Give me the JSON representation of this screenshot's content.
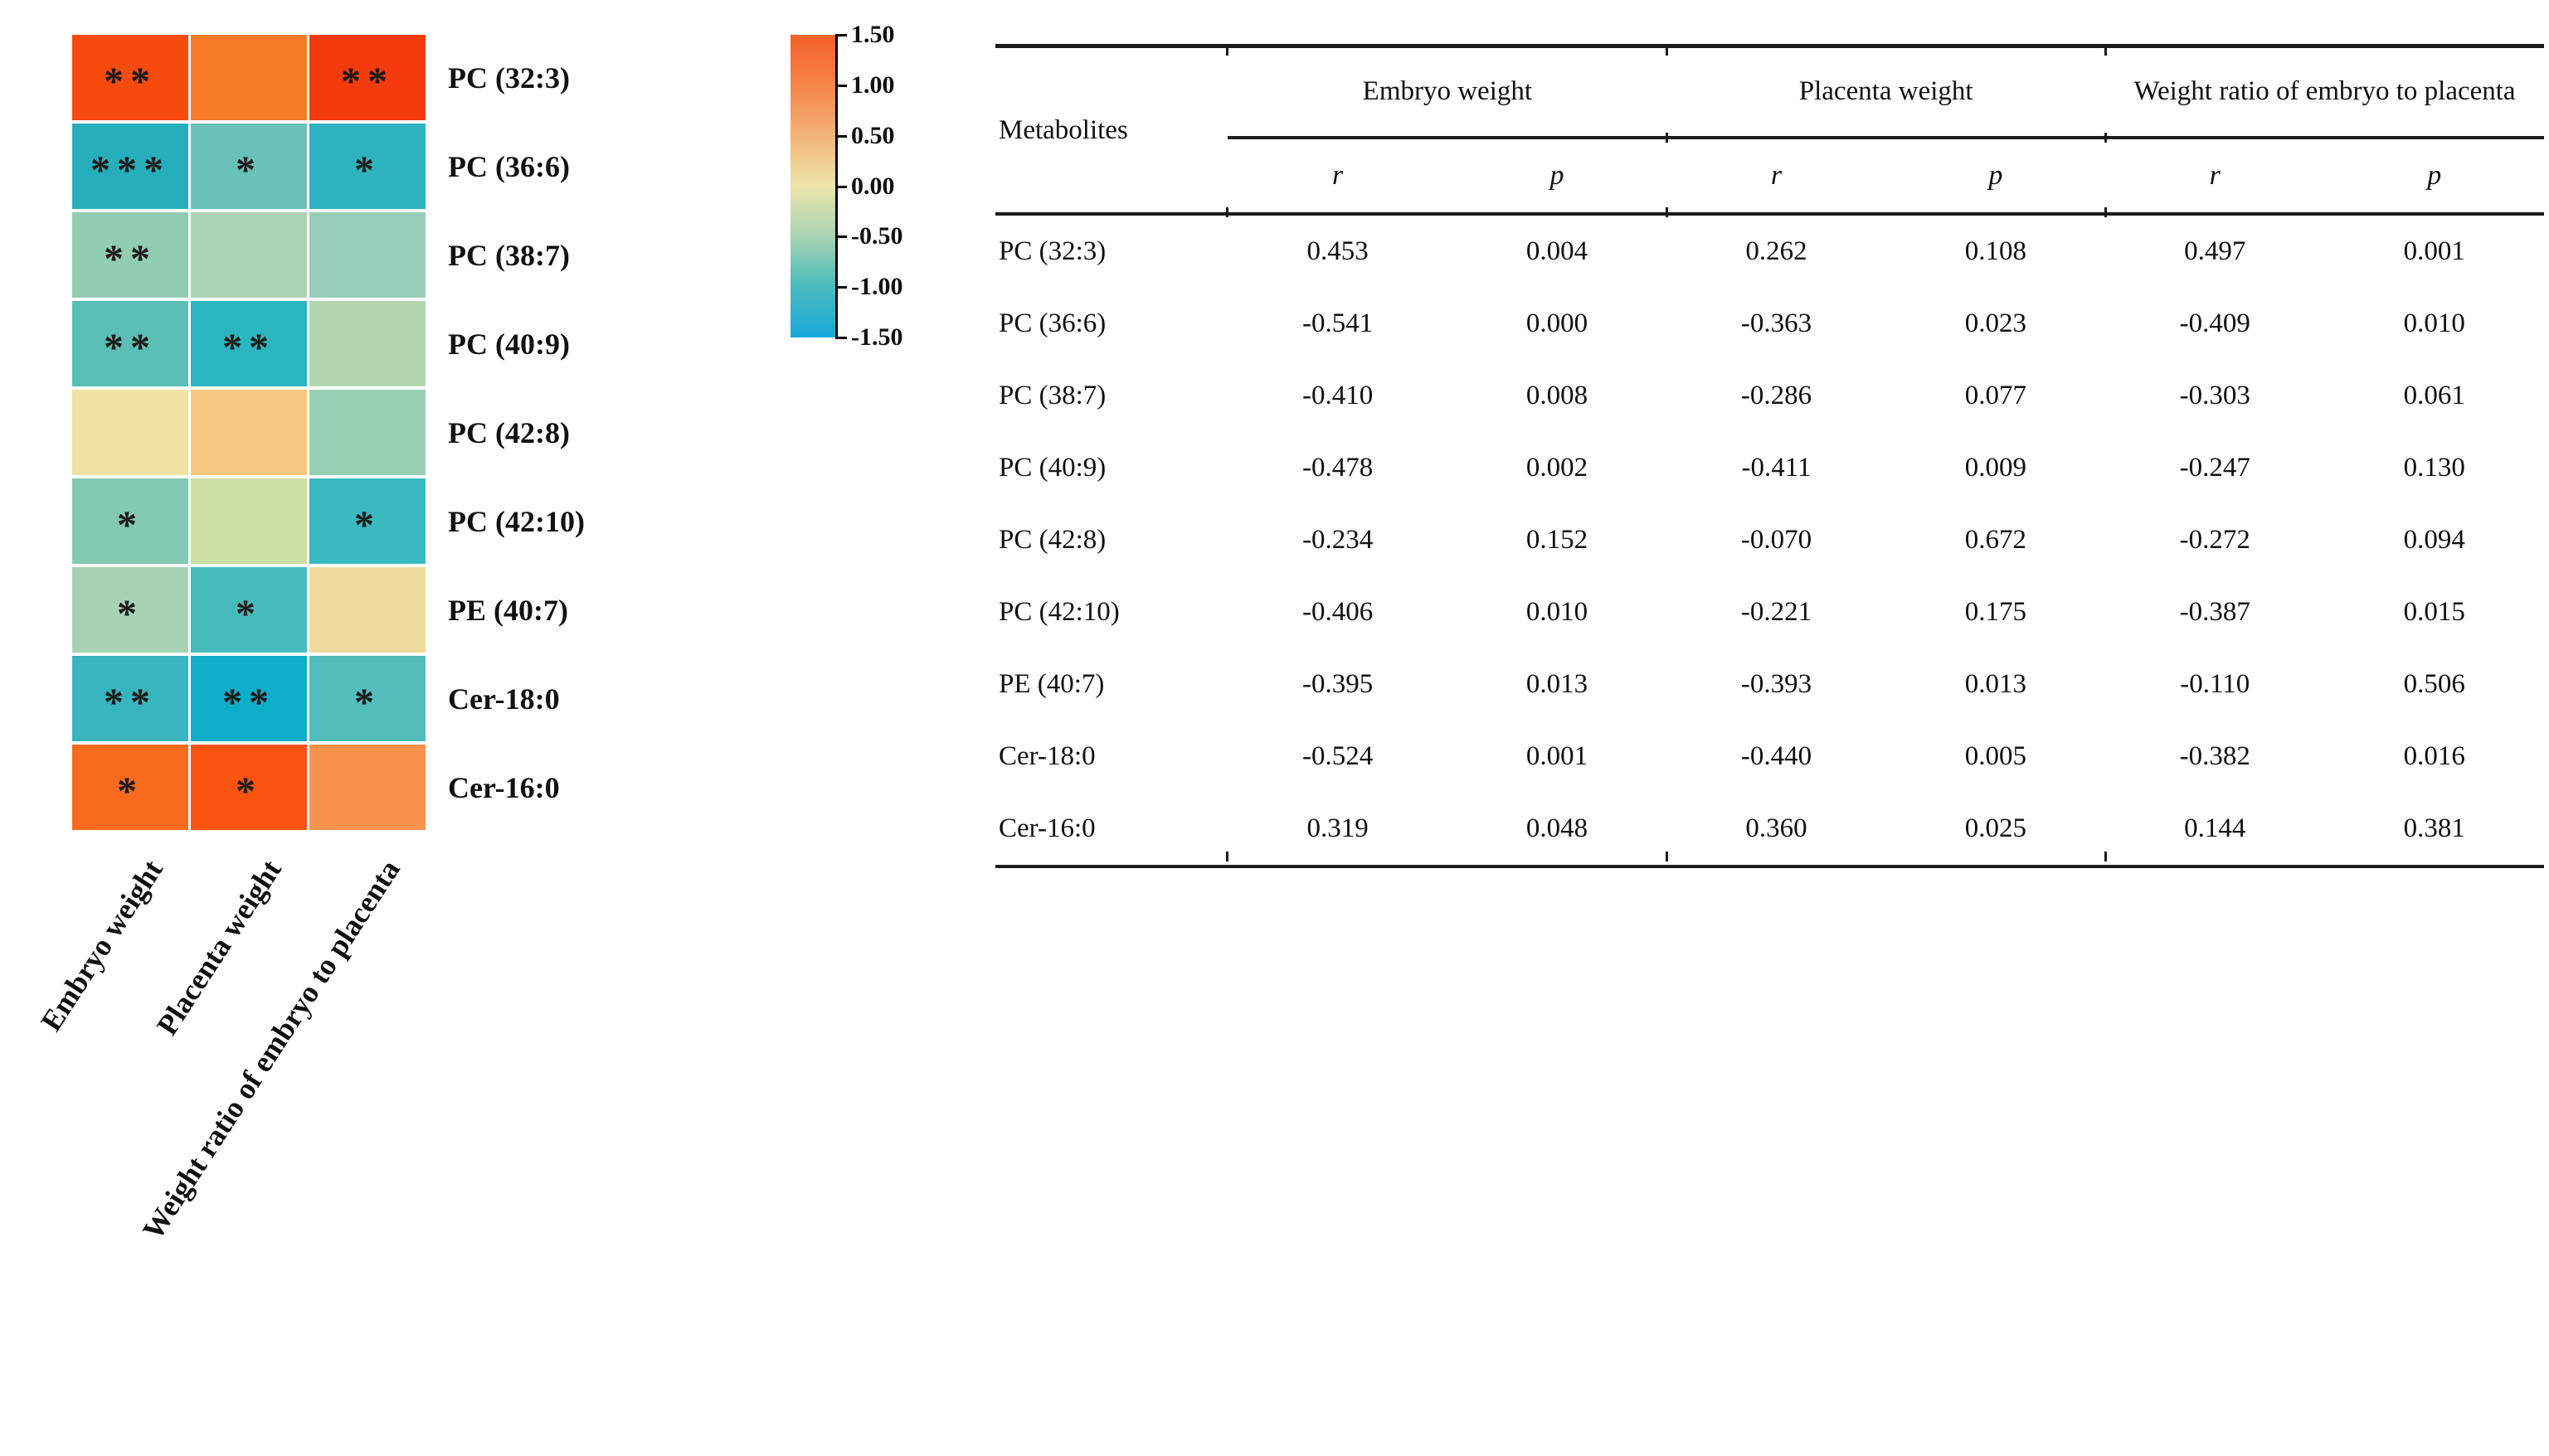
{
  "chart_data": [
    {
      "type": "heatmap",
      "rows": [
        "PC (32:3)",
        "PC (36:6)",
        "PC (38:7)",
        "PC (40:9)",
        "PC (42:8)",
        "PC (42:10)",
        "PE (40:7)",
        "Cer-18:0",
        "Cer-16:0"
      ],
      "columns": [
        "Embryo weight",
        "Placenta weight",
        "Weight ratio of embryo to placenta"
      ],
      "significance": [
        [
          "**",
          "",
          "**"
        ],
        [
          "***",
          "*",
          "*"
        ],
        [
          "**",
          "",
          ""
        ],
        [
          "**",
          "**",
          ""
        ],
        [
          "",
          "",
          ""
        ],
        [
          "*",
          "",
          "*"
        ],
        [
          "*",
          "*",
          ""
        ],
        [
          "**",
          "**",
          "*"
        ],
        [
          "*",
          "*",
          ""
        ]
      ],
      "cell_colors": [
        [
          "#f64a0e",
          "#f87b28",
          "#f33b0d"
        ],
        [
          "#27aebc",
          "#68c2ba",
          "#2fb2bf"
        ],
        [
          "#92ccb3",
          "#aad3b5",
          "#98ceb7"
        ],
        [
          "#5abeb4",
          "#2ab5bf",
          "#b4d6af"
        ],
        [
          "#f0e3a4",
          "#f6c77f",
          "#97ceb4"
        ],
        [
          "#84c9b2",
          "#ccdfa3",
          "#39b8c0"
        ],
        [
          "#a7d2b6",
          "#45bcbb",
          "#f0db9e"
        ],
        [
          "#38b5be",
          "#0eaec9",
          "#52bdba"
        ],
        [
          "#f86b1d",
          "#f8530f",
          "#f9924c"
        ]
      ],
      "colorbar": {
        "max": 1.5,
        "min": -1.5,
        "tick_labels": [
          "1.50",
          "1.00",
          "0.50",
          "0.00",
          "-0.50",
          "-1.00",
          "-1.50"
        ],
        "gradient_top_to_bottom": [
          "#f4612a",
          "#f6854a",
          "#f3b377",
          "#ece5ab",
          "#a9d3b3",
          "#48bbbc",
          "#1ba8db"
        ]
      }
    },
    {
      "type": "table",
      "corner_header": "Metabolites",
      "column_groups": [
        {
          "label": "Embryo weight",
          "sub": [
            "r",
            "p"
          ]
        },
        {
          "label": "Placenta weight",
          "sub": [
            "r",
            "p"
          ]
        },
        {
          "label": "Weight ratio of embryo to placenta",
          "sub": [
            "r",
            "p"
          ]
        }
      ],
      "rows": [
        {
          "metabolite": "PC (32:3)",
          "values": [
            "0.453",
            "0.004",
            "0.262",
            "0.108",
            "0.497",
            "0.001"
          ]
        },
        {
          "metabolite": "PC (36:6)",
          "values": [
            "-0.541",
            "0.000",
            "-0.363",
            "0.023",
            "-0.409",
            "0.010"
          ]
        },
        {
          "metabolite": "PC (38:7)",
          "values": [
            "-0.410",
            "0.008",
            "-0.286",
            "0.077",
            "-0.303",
            "0.061"
          ]
        },
        {
          "metabolite": "PC (40:9)",
          "values": [
            "-0.478",
            "0.002",
            "-0.411",
            "0.009",
            "-0.247",
            "0.130"
          ]
        },
        {
          "metabolite": "PC (42:8)",
          "values": [
            "-0.234",
            "0.152",
            "-0.070",
            "0.672",
            "-0.272",
            "0.094"
          ]
        },
        {
          "metabolite": "PC (42:10)",
          "values": [
            "-0.406",
            "0.010",
            "-0.221",
            "0.175",
            "-0.387",
            "0.015"
          ]
        },
        {
          "metabolite": "PE (40:7)",
          "values": [
            "-0.395",
            "0.013",
            "-0.393",
            "0.013",
            "-0.110",
            "0.506"
          ]
        },
        {
          "metabolite": "Cer-18:0",
          "values": [
            "-0.524",
            "0.001",
            "-0.440",
            "0.005",
            "-0.382",
            "0.016"
          ]
        },
        {
          "metabolite": "Cer-16:0",
          "values": [
            "0.319",
            "0.048",
            "0.360",
            "0.025",
            "0.144",
            "0.381"
          ]
        }
      ]
    }
  ]
}
